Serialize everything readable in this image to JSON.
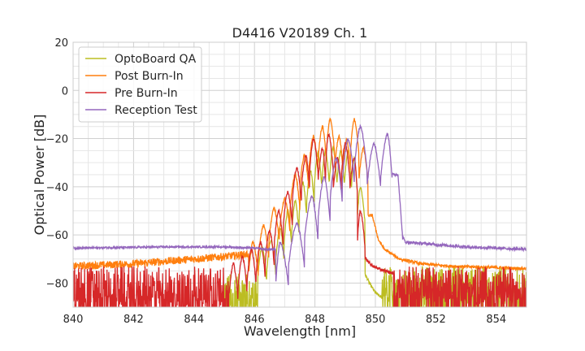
{
  "chart_data": {
    "type": "line",
    "title": "D4416 V20189 Ch. 1",
    "xlabel": "Wavelength [nm]",
    "ylabel": "Optical Power [dB]",
    "xlim": [
      840,
      855
    ],
    "ylim": [
      -90,
      20
    ],
    "xticks": [
      840,
      842,
      844,
      846,
      848,
      850,
      852,
      854
    ],
    "xtick_labels": [
      "840",
      "842",
      "844",
      "846",
      "848",
      "850",
      "852",
      "854"
    ],
    "yticks": [
      20,
      0,
      -20,
      -40,
      -60,
      -80
    ],
    "ytick_labels": [
      "20",
      "0",
      "−20",
      "−40",
      "−60",
      "−80"
    ],
    "x_minor_step": 0.5,
    "y_minor_step": 5,
    "grid": true,
    "legend_position": "top-left",
    "series": [
      {
        "name": "OptoBoard QA",
        "color": "#bcbd22",
        "noise_region": [
          845.0,
          846.4
        ],
        "noise_level": -83,
        "peaks": [
          {
            "x": 846.25,
            "y": -65
          },
          {
            "x": 846.55,
            "y": -62
          },
          {
            "x": 846.85,
            "y": -57
          },
          {
            "x": 847.1,
            "y": -50
          },
          {
            "x": 847.35,
            "y": -46
          },
          {
            "x": 847.6,
            "y": -38
          },
          {
            "x": 847.85,
            "y": -33
          },
          {
            "x": 848.1,
            "y": -26
          },
          {
            "x": 848.35,
            "y": -25
          },
          {
            "x": 848.6,
            "y": -24
          },
          {
            "x": 848.85,
            "y": -25
          },
          {
            "x": 849.1,
            "y": -25
          },
          {
            "x": 849.3,
            "y": -28
          },
          {
            "x": 849.5,
            "y": -40
          }
        ],
        "tail": [
          [
            849.55,
            -70
          ],
          [
            849.65,
            -76
          ],
          [
            849.8,
            -80
          ],
          [
            850.0,
            -84
          ],
          [
            850.2,
            -86
          ]
        ]
      },
      {
        "name": "Post Burn-In",
        "color": "#ff7f0e",
        "baseline": [
          [
            840.0,
            -73
          ],
          [
            842.0,
            -72
          ],
          [
            844.0,
            -70
          ],
          [
            845.0,
            -69
          ],
          [
            845.8,
            -68
          ]
        ],
        "peaks": [
          {
            "x": 845.95,
            "y": -63
          },
          {
            "x": 846.3,
            "y": -56
          },
          {
            "x": 846.65,
            "y": -49
          },
          {
            "x": 847.0,
            "y": -45
          },
          {
            "x": 847.35,
            "y": -35
          },
          {
            "x": 847.65,
            "y": -27
          },
          {
            "x": 847.95,
            "y": -19
          },
          {
            "x": 848.25,
            "y": -15
          },
          {
            "x": 848.5,
            "y": -12
          },
          {
            "x": 848.8,
            "y": -19
          },
          {
            "x": 849.05,
            "y": -20
          },
          {
            "x": 849.3,
            "y": -12
          },
          {
            "x": 849.6,
            "y": -24
          }
        ],
        "tail": [
          [
            849.9,
            -52
          ],
          [
            850.1,
            -62
          ],
          [
            850.3,
            -66
          ],
          [
            850.8,
            -70
          ],
          [
            851.5,
            -72
          ],
          [
            852.5,
            -73
          ],
          [
            855.0,
            -74
          ]
        ]
      },
      {
        "name": "Pre Burn-In",
        "color": "#d62728",
        "baseline_noise_level": -82,
        "peaks": [
          {
            "x": 845.3,
            "y": -72
          },
          {
            "x": 845.6,
            "y": -69
          },
          {
            "x": 845.9,
            "y": -66
          },
          {
            "x": 846.2,
            "y": -63
          },
          {
            "x": 846.5,
            "y": -58
          },
          {
            "x": 846.8,
            "y": -50
          },
          {
            "x": 847.1,
            "y": -42
          },
          {
            "x": 847.4,
            "y": -32
          },
          {
            "x": 847.7,
            "y": -27
          },
          {
            "x": 847.95,
            "y": -20
          },
          {
            "x": 848.25,
            "y": -24
          },
          {
            "x": 848.45,
            "y": -18
          },
          {
            "x": 848.75,
            "y": -28
          },
          {
            "x": 849.0,
            "y": -22
          },
          {
            "x": 849.3,
            "y": -28
          },
          {
            "x": 849.5,
            "y": -50
          }
        ],
        "tail": [
          [
            849.7,
            -70
          ],
          [
            849.9,
            -73
          ],
          [
            850.1,
            -74
          ],
          [
            850.6,
            -76
          ]
        ]
      },
      {
        "name": "Reception Test",
        "color": "#9467bd",
        "baseline": [
          [
            840.0,
            -65.5
          ],
          [
            843.0,
            -65
          ],
          [
            845.0,
            -65
          ],
          [
            846.0,
            -65.5
          ],
          [
            846.4,
            -66
          ]
        ],
        "peaks": [
          {
            "x": 846.85,
            "y": -63
          },
          {
            "x": 847.4,
            "y": -55
          },
          {
            "x": 847.9,
            "y": -44
          },
          {
            "x": 848.3,
            "y": -36
          },
          {
            "x": 848.7,
            "y": -28
          },
          {
            "x": 849.1,
            "y": -20
          },
          {
            "x": 849.5,
            "y": -15
          },
          {
            "x": 849.95,
            "y": -22
          },
          {
            "x": 850.4,
            "y": -18
          }
        ],
        "tail": [
          [
            850.75,
            -35
          ],
          [
            850.9,
            -61
          ],
          [
            851.0,
            -63
          ],
          [
            852.0,
            -64
          ],
          [
            853.0,
            -65
          ],
          [
            854.0,
            -65.5
          ],
          [
            855.0,
            -66
          ]
        ]
      }
    ]
  }
}
